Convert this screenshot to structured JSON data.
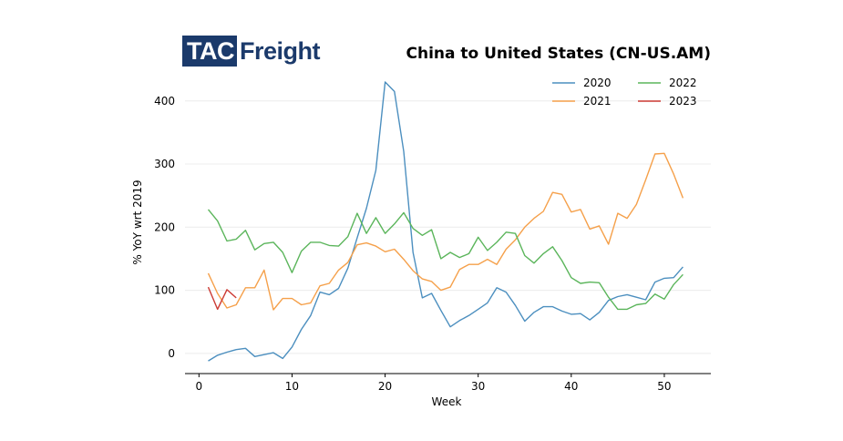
{
  "logo": {
    "part1": "TAC",
    "part2": "Freight"
  },
  "colors": {
    "s2020": "#4c8fbf",
    "s2021": "#f5a04a",
    "s2022": "#5bb55b",
    "s2023": "#cc3a33",
    "logo_navy": "#1b3a6b"
  },
  "chart_data": {
    "type": "line",
    "title": "China to United States (CN-US.AM)",
    "xlabel": "Week",
    "ylabel": "% YoY wrt 2019",
    "xlim": [
      -1.5,
      55
    ],
    "ylim": [
      -32,
      430
    ],
    "xticks": [
      0,
      10,
      20,
      30,
      40,
      50
    ],
    "yticks": [
      0,
      100,
      200,
      300,
      400
    ],
    "grid": "horizontal",
    "legend_position": "top-right",
    "series": [
      {
        "name": "2020",
        "color": "#4c8fbf",
        "x": [
          1,
          2,
          3,
          4,
          5,
          6,
          7,
          8,
          9,
          10,
          11,
          12,
          13,
          14,
          15,
          16,
          17,
          18,
          19,
          20,
          21,
          22,
          23,
          24,
          25,
          26,
          27,
          28,
          29,
          30,
          31,
          32,
          33,
          34,
          35,
          36,
          37,
          38,
          39,
          40,
          41,
          42,
          43,
          44,
          45,
          46,
          47,
          48,
          49,
          50,
          51,
          52
        ],
        "values": [
          -12,
          -3,
          2,
          6,
          8,
          -5,
          -2,
          1,
          -8,
          10,
          38,
          60,
          97,
          93,
          103,
          135,
          183,
          230,
          290,
          430,
          415,
          320,
          160,
          88,
          95,
          68,
          42,
          52,
          60,
          70,
          80,
          104,
          97,
          76,
          51,
          65,
          74,
          74,
          67,
          62,
          63,
          53,
          65,
          84,
          90,
          93,
          89,
          85,
          113,
          119,
          120,
          137
        ]
      },
      {
        "name": "2021",
        "color": "#f5a04a",
        "x": [
          1,
          2,
          3,
          4,
          5,
          6,
          7,
          8,
          9,
          10,
          11,
          12,
          13,
          14,
          15,
          16,
          17,
          18,
          19,
          20,
          21,
          22,
          23,
          24,
          25,
          26,
          27,
          28,
          29,
          30,
          31,
          32,
          33,
          34,
          35,
          36,
          37,
          38,
          39,
          40,
          41,
          42,
          43,
          44,
          45,
          46,
          47,
          48,
          49,
          50,
          51,
          52
        ],
        "values": [
          127,
          95,
          72,
          77,
          104,
          104,
          132,
          69,
          87,
          87,
          77,
          80,
          107,
          111,
          132,
          144,
          172,
          175,
          170,
          161,
          165,
          149,
          131,
          118,
          114,
          100,
          105,
          133,
          141,
          141,
          149,
          141,
          165,
          180,
          200,
          214,
          225,
          255,
          252,
          224,
          228,
          197,
          202,
          173,
          222,
          214,
          236,
          275,
          316,
          317,
          284,
          246
        ]
      },
      {
        "name": "2022",
        "color": "#5bb55b",
        "x": [
          1,
          2,
          3,
          4,
          5,
          6,
          7,
          8,
          9,
          10,
          11,
          12,
          13,
          14,
          15,
          16,
          17,
          18,
          19,
          20,
          21,
          22,
          23,
          24,
          25,
          26,
          27,
          28,
          29,
          30,
          31,
          32,
          33,
          34,
          35,
          36,
          37,
          38,
          39,
          40,
          41,
          42,
          43,
          44,
          45,
          46,
          47,
          48,
          49,
          50,
          51,
          52
        ],
        "values": [
          228,
          210,
          178,
          181,
          195,
          164,
          174,
          176,
          160,
          128,
          162,
          176,
          176,
          171,
          170,
          185,
          222,
          190,
          215,
          190,
          205,
          223,
          198,
          187,
          196,
          150,
          160,
          152,
          158,
          184,
          163,
          176,
          192,
          190,
          155,
          143,
          158,
          169,
          147,
          120,
          111,
          113,
          112,
          89,
          70,
          70,
          77,
          79,
          94,
          86,
          109,
          125
        ]
      },
      {
        "name": "2023",
        "color": "#cc3a33",
        "x": [
          1,
          2,
          3,
          4
        ],
        "values": [
          105,
          70,
          101,
          88
        ]
      }
    ]
  }
}
